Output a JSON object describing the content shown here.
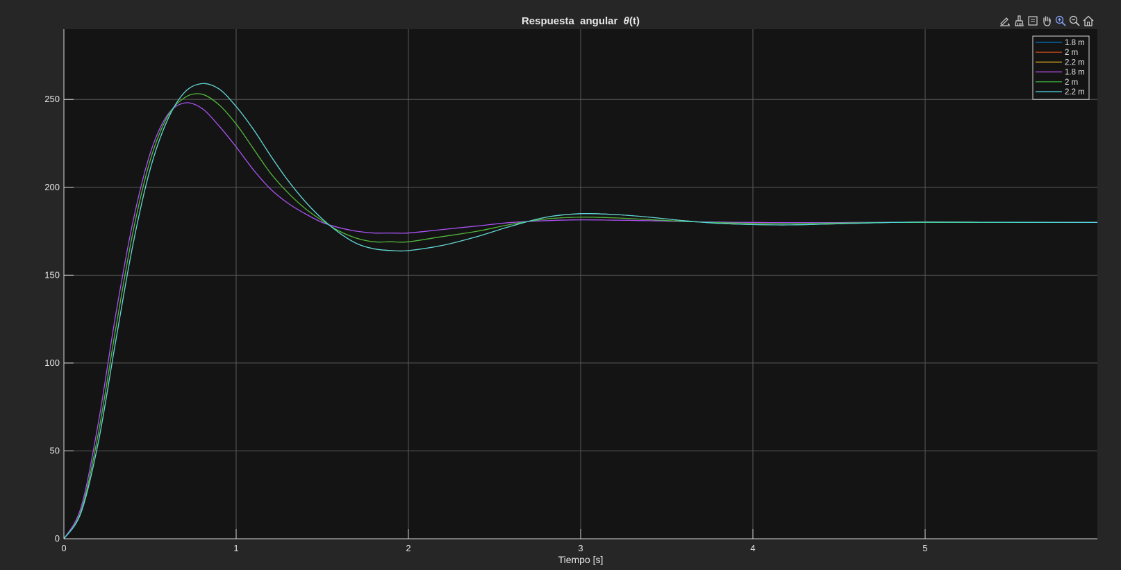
{
  "colors": {
    "figure_bg": "#262626",
    "axes_bg": "#141414",
    "grid": "#5a5a5a",
    "axis": "#d9d9d9",
    "text": "#e6e6e6"
  },
  "toolbar": [
    {
      "name": "edit-plot-icon",
      "title": "Edit plot"
    },
    {
      "name": "brush-icon",
      "title": "Brush data"
    },
    {
      "name": "data-tips-icon",
      "title": "Data tips"
    },
    {
      "name": "pan-icon",
      "title": "Pan"
    },
    {
      "name": "zoom-in-icon",
      "title": "Zoom in"
    },
    {
      "name": "zoom-out-icon",
      "title": "Zoom out"
    },
    {
      "name": "home-icon",
      "title": "Restore view"
    }
  ],
  "chart_data": {
    "type": "line",
    "title": "Respuesta  angular  θ(t)",
    "title_parts": {
      "prefix": "Respuesta  angular  ",
      "symbol": "θ",
      "suffix": "(t)"
    },
    "xlabel": "Tiempo [s]",
    "ylabel": "",
    "xlim": [
      0,
      6
    ],
    "ylim": [
      0,
      290
    ],
    "xticks": [
      0,
      1,
      2,
      3,
      4,
      5
    ],
    "xtick_labels": [
      "0",
      "1",
      "2",
      "3",
      "4",
      "5"
    ],
    "yticks": [
      0,
      50,
      100,
      150,
      200,
      250
    ],
    "ytick_labels": [
      "0",
      "50",
      "100",
      "150",
      "200",
      "250"
    ],
    "grid": true,
    "legend_position": "top-right",
    "x": [
      0,
      0.1,
      0.2,
      0.3,
      0.4,
      0.5,
      0.6,
      0.7,
      0.8,
      0.9,
      1.0,
      1.1,
      1.2,
      1.3,
      1.4,
      1.5,
      1.6,
      1.7,
      1.8,
      1.9,
      2.0,
      2.2,
      2.4,
      2.6,
      2.8,
      3.0,
      3.2,
      3.4,
      3.6,
      3.8,
      4.0,
      4.2,
      4.4,
      4.6,
      4.8,
      5.0,
      5.5,
      6.0
    ],
    "series": [
      {
        "name": "1.8 m",
        "color": "#0072bd",
        "values": [
          0,
          18,
          66,
          127,
          180,
          219,
          241,
          248,
          245,
          235,
          223,
          210,
          199,
          191,
          185,
          180,
          177,
          175,
          174,
          174,
          174,
          176,
          178,
          180,
          181,
          181.5,
          181.3,
          181,
          180.5,
          180.2,
          180,
          179.9,
          179.9,
          180,
          180,
          180,
          180,
          180
        ]
      },
      {
        "name": "2 m",
        "color": "#d95319",
        "values": [
          0,
          16,
          60,
          119,
          174,
          215,
          240,
          251,
          253,
          247,
          236,
          222,
          208,
          197,
          188,
          181,
          175,
          171,
          169,
          169,
          169,
          172,
          175,
          179,
          182,
          183,
          182.6,
          181.6,
          180.6,
          179.9,
          179.5,
          179.4,
          179.6,
          179.8,
          180,
          180,
          180,
          180
        ]
      },
      {
        "name": "2.2 m",
        "color": "#edb120",
        "values": [
          0,
          15,
          55,
          112,
          167,
          210,
          238,
          254,
          259,
          256,
          246,
          233,
          218,
          204,
          192,
          182,
          174,
          168,
          165,
          164,
          164,
          167,
          172,
          178,
          183,
          185,
          184.5,
          183,
          181,
          179.5,
          178.8,
          178.6,
          179,
          179.5,
          180,
          180.2,
          180.1,
          180
        ]
      },
      {
        "name": "1.8 m",
        "color": "#b84cf0",
        "values": [
          0,
          18,
          66,
          127,
          180,
          219,
          241,
          248,
          245,
          235,
          223,
          210,
          199,
          191,
          185,
          180,
          177,
          175,
          174,
          174,
          174,
          176,
          178,
          180,
          181,
          181.5,
          181.3,
          181,
          180.5,
          180.2,
          180,
          179.9,
          179.9,
          180,
          180,
          180,
          180,
          180
        ]
      },
      {
        "name": "2 m",
        "color": "#3fbf3f",
        "values": [
          0,
          16,
          60,
          119,
          174,
          215,
          240,
          251,
          253,
          247,
          236,
          222,
          208,
          197,
          188,
          181,
          175,
          171,
          169,
          169,
          169,
          172,
          175,
          179,
          182,
          183,
          182.6,
          181.6,
          180.6,
          179.9,
          179.5,
          179.4,
          179.6,
          179.8,
          180,
          180,
          180,
          180
        ]
      },
      {
        "name": "2.2 m",
        "color": "#4fd6e6",
        "values": [
          0,
          15,
          55,
          112,
          167,
          210,
          238,
          254,
          259,
          256,
          246,
          233,
          218,
          204,
          192,
          182,
          174,
          168,
          165,
          164,
          164,
          167,
          172,
          178,
          183,
          185,
          184.5,
          183,
          181,
          179.5,
          178.8,
          178.6,
          179,
          179.5,
          180,
          180.2,
          180.1,
          180
        ]
      }
    ]
  }
}
